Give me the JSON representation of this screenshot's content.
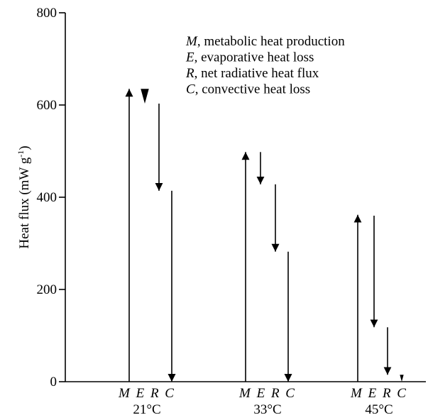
{
  "chart_data": {
    "type": "bar",
    "title": "",
    "xlabel": "",
    "ylabel": "Heat flux (mW g",
    "ylabel_sup": "-1",
    "ylabel_close": ")",
    "ylim": [
      0,
      800
    ],
    "yticks": [
      "0",
      "200",
      "400",
      "600",
      "800"
    ],
    "grid": false,
    "legend_position": "top-right",
    "legend": [
      {
        "letter": "M",
        "text": ", metabolic heat production"
      },
      {
        "letter": "E",
        "text": ", evaporative heat loss"
      },
      {
        "letter": "R",
        "text": ", net radiative heat flux"
      },
      {
        "letter": "C",
        "text": ", convective heat loss"
      }
    ],
    "series_letters": [
      "M",
      "E",
      "R",
      "C"
    ],
    "groups": [
      {
        "label": "21°C",
        "arrows": [
          {
            "series": "M",
            "from": 0,
            "to": 635
          },
          {
            "series": "E",
            "from": 635,
            "to": 603
          },
          {
            "series": "R",
            "from": 603,
            "to": 414
          },
          {
            "series": "C",
            "from": 414,
            "to": 0
          }
        ]
      },
      {
        "label": "33°C",
        "arrows": [
          {
            "series": "M",
            "from": 0,
            "to": 498
          },
          {
            "series": "E",
            "from": 498,
            "to": 428
          },
          {
            "series": "R",
            "from": 428,
            "to": 282
          },
          {
            "series": "C",
            "from": 282,
            "to": 0
          }
        ]
      },
      {
        "label": "45°C",
        "arrows": [
          {
            "series": "M",
            "from": 0,
            "to": 362
          },
          {
            "series": "E",
            "from": 360,
            "to": 118
          },
          {
            "series": "R",
            "from": 118,
            "to": 15
          },
          {
            "series": "C",
            "from": 15,
            "to": 0
          }
        ]
      }
    ]
  }
}
